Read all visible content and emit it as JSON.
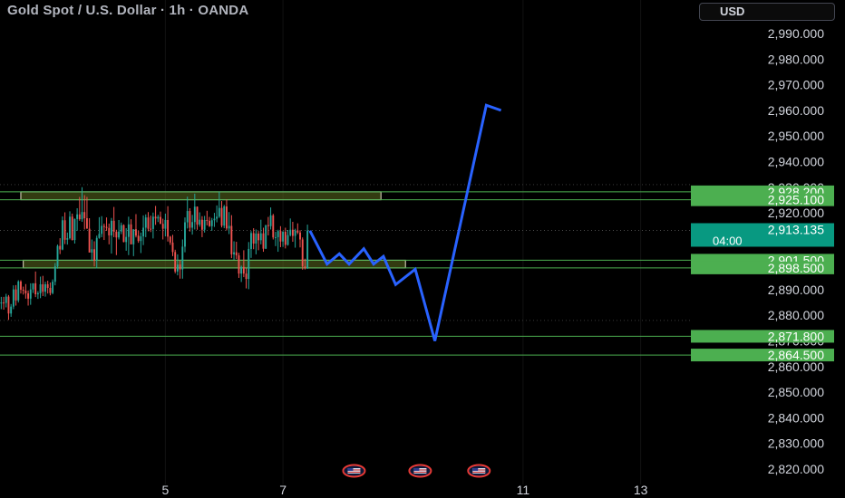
{
  "header": {
    "title": "Gold Spot / U.S. Dollar · 1h · OANDA",
    "currency": "USD"
  },
  "colors": {
    "background": "#000000",
    "up": "#26a69a",
    "down": "#ef5350",
    "level_line": "#4caf50",
    "level_tag": "#4caf50",
    "price_tag": "#089981",
    "projection": "#2962ff",
    "zone_fill": "#5d6b1f",
    "axis_text": "#d1d4dc"
  },
  "chart_data": {
    "type": "candlestick",
    "symbol": "Gold Spot / U.S. Dollar",
    "interval": "1h",
    "source": "OANDA",
    "ylim": [
      2815,
      3000
    ],
    "y_ticks": [
      2820,
      2830,
      2840,
      2850,
      2860,
      2870,
      2880,
      2890,
      2900,
      2910,
      2920,
      2930,
      2940,
      2950,
      2960,
      2970,
      2980,
      2990
    ],
    "y_tick_labels": [
      "2,820.000",
      "2,830.000",
      "2,840.000",
      "2,850.000",
      "2,860.000",
      "2,870.000",
      "2,880.000",
      "2,890.000",
      "2,900.000",
      "2,910.000",
      "2,920.000",
      "2,930.000",
      "2,940.000",
      "2,950.000",
      "2,960.000",
      "2,970.000",
      "2,980.000",
      "2,990.000"
    ],
    "x_ticks": [
      "5",
      "7",
      "11",
      "13"
    ],
    "x_tick_bars": [
      67,
      115,
      213,
      261
    ],
    "bars_total": 282,
    "horizontal_levels": [
      {
        "label": "2,928.200",
        "value": 2928.2
      },
      {
        "label": "2,925.100",
        "value": 2925.1
      },
      {
        "label": "2,901.500",
        "value": 2901.5
      },
      {
        "label": "2,898.500",
        "value": 2898.5
      },
      {
        "label": "2,871.800",
        "value": 2871.8
      },
      {
        "label": "2,864.500",
        "value": 2864.5
      }
    ],
    "current_price": {
      "label": "2,913.135",
      "countdown": "04:00",
      "value": 2913.135
    },
    "zones": [
      {
        "name": "resistance",
        "from": 2925.1,
        "to": 2928.2,
        "start_bar": 8,
        "end_bar": 155
      },
      {
        "name": "support",
        "from": 2898.5,
        "to": 2901.5,
        "start_bar": 9,
        "end_bar": 165
      }
    ],
    "projection_path": [
      {
        "bar": 126,
        "y": 2913
      },
      {
        "bar": 133,
        "y": 2900
      },
      {
        "bar": 138,
        "y": 2904
      },
      {
        "bar": 142,
        "y": 2900
      },
      {
        "bar": 148,
        "y": 2906
      },
      {
        "bar": 152,
        "y": 2900
      },
      {
        "bar": 156,
        "y": 2903
      },
      {
        "bar": 161,
        "y": 2892
      },
      {
        "bar": 169,
        "y": 2898
      },
      {
        "bar": 177,
        "y": 2870
      },
      {
        "bar": 198,
        "y": 2962
      },
      {
        "bar": 204,
        "y": 2960
      }
    ],
    "candles": [
      [
        2885.0,
        2887.2,
        2882.4,
        2885.0
      ],
      [
        2885.0,
        2887.2,
        2882.2,
        2884.8
      ],
      [
        2884.8,
        2888.4,
        2883.1,
        2887.3
      ],
      [
        2887.3,
        2887.9,
        2878.2,
        2880.7
      ],
      [
        2880.7,
        2884.4,
        2879.4,
        2883.4
      ],
      [
        2883.4,
        2891.7,
        2882.4,
        2890.1
      ],
      [
        2890.1,
        2891.8,
        2883.8,
        2885.8
      ],
      [
        2885.8,
        2893.7,
        2885.0,
        2893.2
      ],
      [
        2893.2,
        2893.7,
        2888.5,
        2890.0
      ],
      [
        2890.0,
        2891.2,
        2888.1,
        2889.6
      ],
      [
        2889.6,
        2892.2,
        2886.5,
        2888.6
      ],
      [
        2888.6,
        2889.7,
        2883.8,
        2886.5
      ],
      [
        2886.5,
        2892.5,
        2884.1,
        2890.1
      ],
      [
        2890.1,
        2892.5,
        2888.7,
        2892.5
      ],
      [
        2892.5,
        2897.1,
        2887.1,
        2888.2
      ],
      [
        2888.2,
        2889.4,
        2886.4,
        2888.6
      ],
      [
        2888.6,
        2895.1,
        2886.7,
        2892.1
      ],
      [
        2892.1,
        2895.4,
        2887.5,
        2889.2
      ],
      [
        2889.2,
        2893.1,
        2887.3,
        2892.1
      ],
      [
        2892.1,
        2893.5,
        2888.5,
        2890.7
      ],
      [
        2890.7,
        2892.8,
        2887.8,
        2888.7
      ],
      [
        2888.7,
        2894.0,
        2888.2,
        2893.1
      ],
      [
        2893.1,
        2900.4,
        2891.7,
        2899.1
      ],
      [
        2899.1,
        2907.6,
        2898.2,
        2907.1
      ],
      [
        2907.1,
        2910.1,
        2903.9,
        2905.7
      ],
      [
        2905.7,
        2918.6,
        2905.4,
        2917.1
      ],
      [
        2917.1,
        2920.2,
        2907.8,
        2909.5
      ],
      [
        2909.5,
        2912.3,
        2907.6,
        2910.1
      ],
      [
        2910.1,
        2920.6,
        2909.6,
        2918.5
      ],
      [
        2918.5,
        2919.7,
        2909.2,
        2909.4
      ],
      [
        2909.4,
        2917.8,
        2908.0,
        2917.6
      ],
      [
        2917.6,
        2921.8,
        2913.0,
        2919.4
      ],
      [
        2919.4,
        2926.2,
        2916.9,
        2917.5
      ],
      [
        2917.5,
        2930.0,
        2916.5,
        2920.3
      ],
      [
        2920.3,
        2926.9,
        2913.5,
        2917.9
      ],
      [
        2917.9,
        2926.2,
        2913.9,
        2913.8
      ],
      [
        2913.8,
        2917.9,
        2904.8,
        2904.5
      ],
      [
        2904.5,
        2909.6,
        2901.2,
        2905.8
      ],
      [
        2905.8,
        2908.9,
        2899.1,
        2901.4
      ],
      [
        2901.4,
        2911.1,
        2898.3,
        2910.2
      ],
      [
        2910.2,
        2918.3,
        2909.9,
        2911.8
      ],
      [
        2911.8,
        2918.7,
        2910.5,
        2914.9
      ],
      [
        2914.9,
        2915.8,
        2909.4,
        2914.5
      ],
      [
        2914.5,
        2918.2,
        2913.0,
        2914.1
      ],
      [
        2914.1,
        2915.8,
        2907.7,
        2911.2
      ],
      [
        2911.2,
        2918.0,
        2904.1,
        2916.9
      ],
      [
        2916.9,
        2922.3,
        2910.5,
        2912.6
      ],
      [
        2912.6,
        2913.4,
        2903.5,
        2910.4
      ],
      [
        2910.4,
        2917.2,
        2909.6,
        2912.7
      ],
      [
        2912.7,
        2916.2,
        2911.7,
        2915.2
      ],
      [
        2915.2,
        2915.5,
        2908.5,
        2908.6
      ],
      [
        2908.6,
        2914.0,
        2905.2,
        2910.6
      ],
      [
        2910.6,
        2918.5,
        2903.5,
        2915.5
      ],
      [
        2915.5,
        2917.5,
        2907.7,
        2907.7
      ],
      [
        2907.7,
        2913.3,
        2903.1,
        2913.6
      ],
      [
        2913.6,
        2919.5,
        2910.4,
        2911.1
      ],
      [
        2911.1,
        2913.0,
        2908.3,
        2909.0
      ],
      [
        2909.0,
        2912.3,
        2904.3,
        2910.8
      ],
      [
        2910.8,
        2919.0,
        2907.4,
        2914.2
      ],
      [
        2914.2,
        2919.4,
        2910.5,
        2918.2
      ],
      [
        2918.2,
        2920.3,
        2912.8,
        2913.8
      ],
      [
        2913.8,
        2918.9,
        2912.5,
        2913.7
      ],
      [
        2913.7,
        2920.1,
        2910.0,
        2918.5
      ],
      [
        2918.5,
        2922.7,
        2915.3,
        2917.8
      ],
      [
        2917.8,
        2919.2,
        2916.4,
        2918.4
      ],
      [
        2918.4,
        2920.5,
        2915.6,
        2915.7
      ],
      [
        2915.7,
        2917.7,
        2909.6,
        2913.8
      ],
      [
        2913.8,
        2919.7,
        2910.8,
        2917.2
      ],
      [
        2917.2,
        2922.6,
        2908.8,
        2910.7
      ],
      [
        2910.7,
        2911.0,
        2907.5,
        2908.4
      ],
      [
        2908.4,
        2911.4,
        2903.1,
        2904.7
      ],
      [
        2904.7,
        2905.6,
        2896.4,
        2897.1
      ],
      [
        2897.1,
        2903.8,
        2895.6,
        2899.8
      ],
      [
        2899.8,
        2901.3,
        2894.3,
        2897.9
      ],
      [
        2897.9,
        2909.6,
        2894.3,
        2906.8
      ],
      [
        2906.8,
        2918.2,
        2904.6,
        2916.3
      ],
      [
        2916.3,
        2926.3,
        2913.9,
        2920.7
      ],
      [
        2920.7,
        2921.8,
        2912.7,
        2914.2
      ],
      [
        2914.2,
        2919.2,
        2911.5,
        2916.4
      ],
      [
        2916.4,
        2927.5,
        2913.5,
        2922.4
      ],
      [
        2922.4,
        2922.5,
        2913.4,
        2915.4
      ],
      [
        2915.4,
        2920.2,
        2914.6,
        2917.3
      ],
      [
        2917.3,
        2918.7,
        2910.5,
        2913.4
      ],
      [
        2913.4,
        2918.8,
        2912.3,
        2917.2
      ],
      [
        2917.2,
        2920.8,
        2915.1,
        2916.9
      ],
      [
        2916.9,
        2918.4,
        2914.5,
        2914.8
      ],
      [
        2914.8,
        2918.0,
        2913.0,
        2917.1
      ],
      [
        2917.1,
        2920.0,
        2914.5,
        2917.7
      ],
      [
        2917.7,
        2922.9,
        2916.3,
        2918.5
      ],
      [
        2918.5,
        2928.2,
        2918.0,
        2921.9
      ],
      [
        2921.9,
        2924.6,
        2914.3,
        2915.0
      ],
      [
        2915.0,
        2923.1,
        2914.0,
        2922.5
      ],
      [
        2922.5,
        2925.2,
        2913.1,
        2913.9
      ],
      [
        2913.9,
        2920.3,
        2911.7,
        2914.9
      ],
      [
        2914.9,
        2919.1,
        2902.3,
        2903.8
      ],
      [
        2903.8,
        2908.9,
        2901.7,
        2904.6
      ],
      [
        2904.6,
        2908.7,
        2902.0,
        2903.4
      ],
      [
        2903.4,
        2904.4,
        2894.6,
        2896.3
      ],
      [
        2896.3,
        2899.4,
        2893.0,
        2898.9
      ],
      [
        2898.9,
        2905.4,
        2894.9,
        2896.3
      ],
      [
        2896.3,
        2898.3,
        2890.5,
        2894.2
      ],
      [
        2894.2,
        2908.6,
        2890.2,
        2905.9
      ],
      [
        2905.9,
        2912.9,
        2902.4,
        2912.1
      ],
      [
        2912.1,
        2914.0,
        2905.8,
        2908.0
      ],
      [
        2908.0,
        2913.5,
        2903.8,
        2911.9
      ],
      [
        2911.9,
        2912.9,
        2905.4,
        2909.3
      ],
      [
        2909.3,
        2917.3,
        2907.7,
        2912.0
      ],
      [
        2912.0,
        2914.2,
        2904.8,
        2906.0
      ],
      [
        2906.0,
        2915.3,
        2905.9,
        2915.2
      ],
      [
        2915.2,
        2918.4,
        2911.2,
        2914.8
      ],
      [
        2914.8,
        2922.1,
        2913.5,
        2919.0
      ],
      [
        2919.0,
        2919.6,
        2909.6,
        2910.4
      ],
      [
        2910.4,
        2912.6,
        2907.0,
        2910.5
      ],
      [
        2910.5,
        2913.4,
        2904.8,
        2912.9
      ],
      [
        2912.9,
        2914.8,
        2906.6,
        2908.8
      ],
      [
        2908.8,
        2912.9,
        2906.7,
        2912.6
      ],
      [
        2912.6,
        2914.2,
        2906.1,
        2907.5
      ],
      [
        2907.5,
        2913.3,
        2907.2,
        2911.3
      ],
      [
        2911.3,
        2917.8,
        2910.8,
        2913.4
      ],
      [
        2913.4,
        2916.5,
        2908.7,
        2911.0
      ],
      [
        2911.0,
        2913.8,
        2906.4,
        2913.1
      ],
      [
        2913.1,
        2915.9,
        2911.7,
        2912.3
      ],
      [
        2912.3,
        2913.2,
        2906.5,
        2909.6
      ],
      [
        2909.6,
        2910.4,
        2897.8,
        2899.1
      ],
      [
        2899.1,
        2902.1,
        2897.9,
        2898.3
      ],
      [
        2898.3,
        2915.4,
        2898.1,
        2913.1
      ]
    ]
  }
}
